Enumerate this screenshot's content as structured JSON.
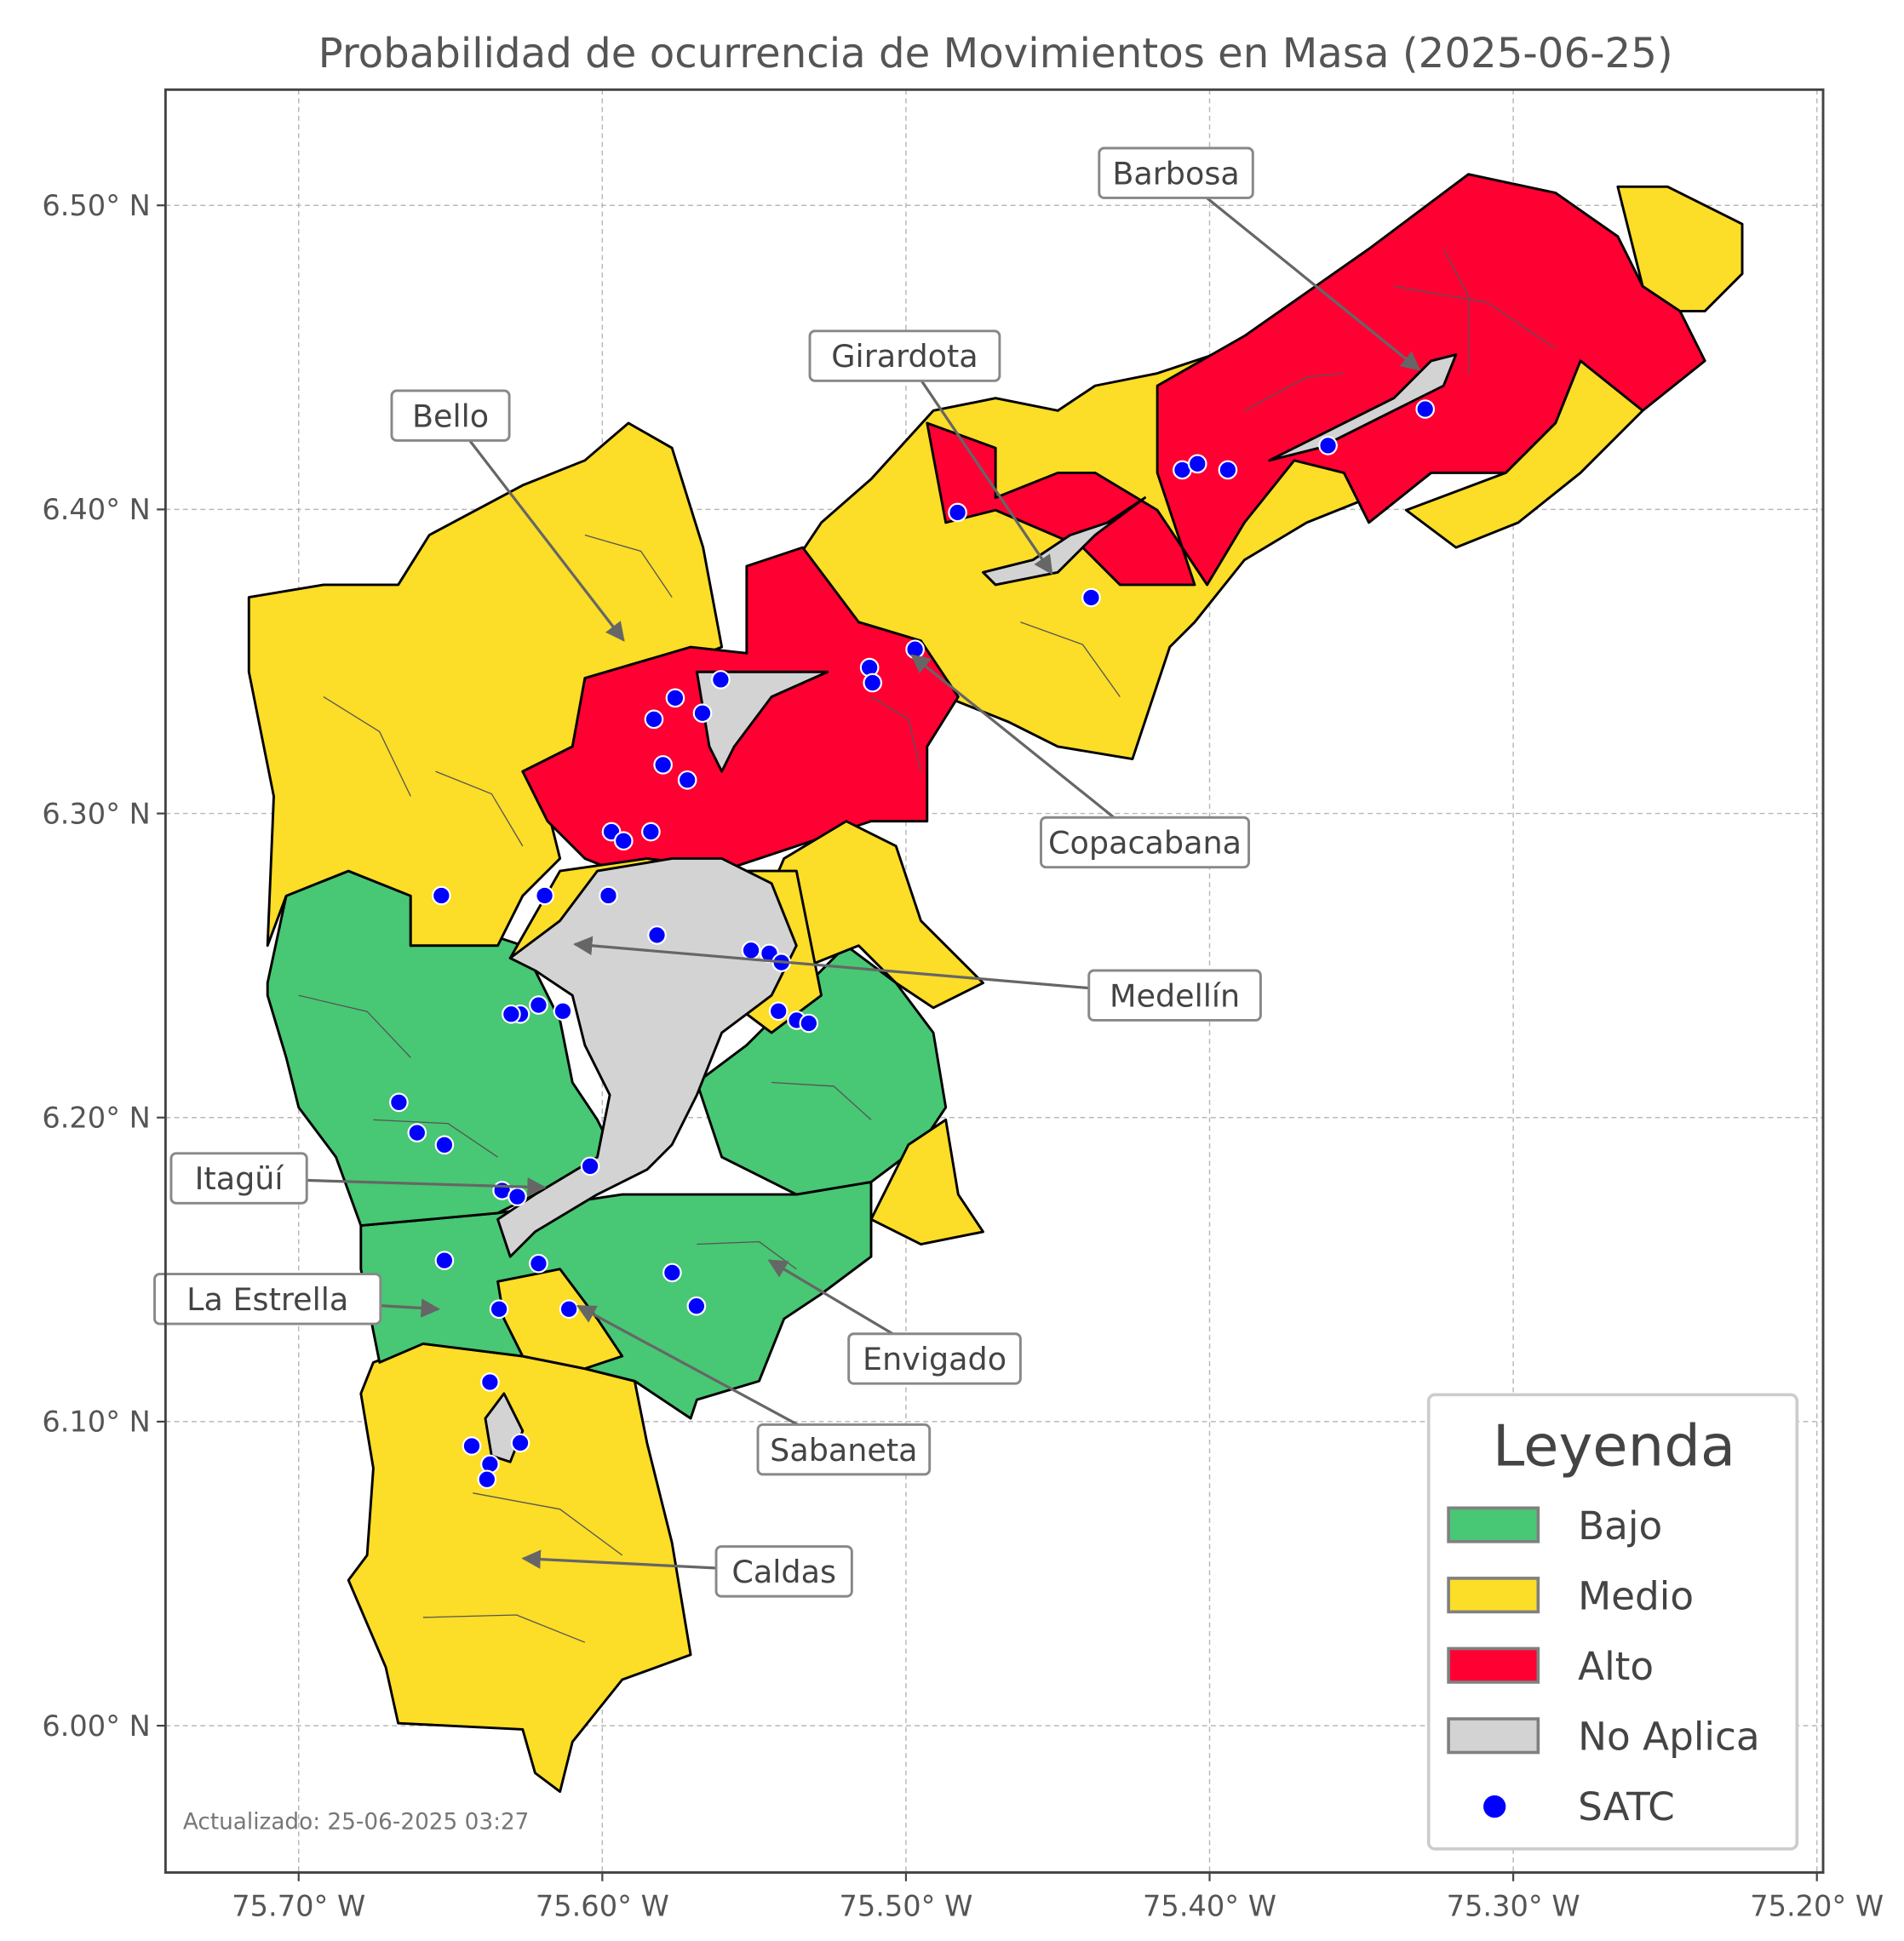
{
  "title": "Probabilidad de ocurrencia de Movimientos en Masa (2025-06-25)",
  "x_axis": {
    "ticks": [
      "75.70° W",
      "75.60° W",
      "75.50° W",
      "75.40° W",
      "75.30° W",
      "75.20° W"
    ],
    "values": [
      -75.7,
      -75.6,
      -75.5,
      -75.4,
      -75.3,
      -75.2
    ]
  },
  "y_axis": {
    "ticks": [
      "6.50° N",
      "6.40° N",
      "6.30° N",
      "6.20° N",
      "6.10° N",
      "6.00° N"
    ],
    "values": [
      6.5,
      6.4,
      6.3,
      6.2,
      6.1,
      6.0
    ]
  },
  "grid": true,
  "legend": {
    "title": "Leyenda",
    "placement": "lower-right",
    "items": [
      {
        "label": "Bajo",
        "color": "#48c774",
        "kind": "patch"
      },
      {
        "label": "Medio",
        "color": "#fcdd27",
        "kind": "patch"
      },
      {
        "label": "Alto",
        "color": "#ff0033",
        "kind": "patch"
      },
      {
        "label": "No Aplica",
        "color": "#d3d3d3",
        "kind": "patch"
      },
      {
        "label": "SATC",
        "color": "#0000ff",
        "kind": "point"
      }
    ]
  },
  "annotations": [
    {
      "name": "Barbosa",
      "lon": -75.331,
      "lat": 6.446
    },
    {
      "name": "Girardota",
      "lon": -75.452,
      "lat": 6.379
    },
    {
      "name": "Bello",
      "lon": -75.593,
      "lat": 6.357
    },
    {
      "name": "Copacabana",
      "lon": -75.498,
      "lat": 6.352
    },
    {
      "name": "Medellín",
      "lon": -75.609,
      "lat": 6.257
    },
    {
      "name": "Itagüí",
      "lon": -75.619,
      "lat": 6.177
    },
    {
      "name": "La Estrella",
      "lon": -75.654,
      "lat": 6.137
    },
    {
      "name": "Envigado",
      "lon": -75.545,
      "lat": 6.153
    },
    {
      "name": "Sabaneta",
      "lon": -75.608,
      "lat": 6.138
    },
    {
      "name": "Caldas",
      "lon": -75.626,
      "lat": 6.055
    }
  ],
  "satc_points": [
    [
      -75.329,
      6.433
    ],
    [
      -75.361,
      6.421
    ],
    [
      -75.409,
      6.413
    ],
    [
      -75.404,
      6.415
    ],
    [
      -75.394,
      6.413
    ],
    [
      -75.483,
      6.399
    ],
    [
      -75.439,
      6.371
    ],
    [
      -75.497,
      6.354
    ],
    [
      -75.512,
      6.348
    ],
    [
      -75.511,
      6.343
    ],
    [
      -75.561,
      6.344
    ],
    [
      -75.576,
      6.338
    ],
    [
      -75.567,
      6.333
    ],
    [
      -75.583,
      6.331
    ],
    [
      -75.58,
      6.316
    ],
    [
      -75.572,
      6.311
    ],
    [
      -75.597,
      6.294
    ],
    [
      -75.593,
      6.291
    ],
    [
      -75.584,
      6.294
    ],
    [
      -75.619,
      6.273
    ],
    [
      -75.598,
      6.273
    ],
    [
      -75.653,
      6.273
    ],
    [
      -75.582,
      6.26
    ],
    [
      -75.551,
      6.255
    ],
    [
      -75.545,
      6.254
    ],
    [
      -75.541,
      6.251
    ],
    [
      -75.542,
      6.235
    ],
    [
      -75.536,
      6.232
    ],
    [
      -75.532,
      6.231
    ],
    [
      -75.621,
      6.237
    ],
    [
      -75.627,
      6.234
    ],
    [
      -75.63,
      6.234
    ],
    [
      -75.613,
      6.235
    ],
    [
      -75.667,
      6.205
    ],
    [
      -75.661,
      6.195
    ],
    [
      -75.652,
      6.191
    ],
    [
      -75.604,
      6.184
    ],
    [
      -75.633,
      6.176
    ],
    [
      -75.628,
      6.174
    ],
    [
      -75.652,
      6.153
    ],
    [
      -75.621,
      6.152
    ],
    [
      -75.577,
      6.149
    ],
    [
      -75.569,
      6.138
    ],
    [
      -75.634,
      6.137
    ],
    [
      -75.611,
      6.137
    ],
    [
      -75.637,
      6.113
    ],
    [
      -75.643,
      6.092
    ],
    [
      -75.627,
      6.093
    ],
    [
      -75.637,
      6.086
    ],
    [
      -75.638,
      6.081
    ]
  ],
  "credit": "Actualizado: 25-06-2025 03:27"
}
